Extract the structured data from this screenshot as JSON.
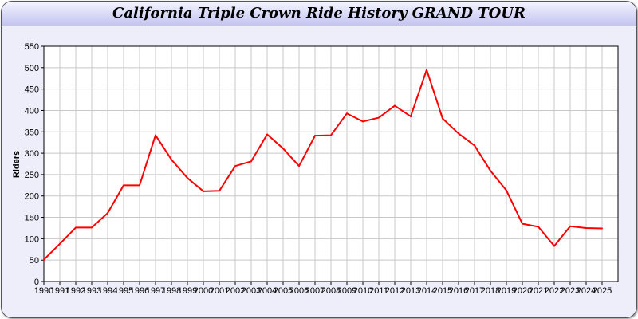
{
  "chart_data": {
    "type": "line",
    "title": "California Triple Crown Ride History GRAND TOUR",
    "xlabel": "",
    "ylabel": "Riders",
    "ylim": [
      0,
      550
    ],
    "yticks": [
      0,
      50,
      100,
      150,
      200,
      250,
      300,
      350,
      400,
      450,
      500,
      550
    ],
    "grid": true,
    "line_color": "#ff0000",
    "x": [
      1990,
      1991,
      1992,
      1993,
      1994,
      1995,
      1996,
      1997,
      1998,
      1999,
      2000,
      2001,
      2002,
      2003,
      2004,
      2005,
      2006,
      2007,
      2008,
      2009,
      2010,
      2011,
      2012,
      2013,
      2014,
      2015,
      2016,
      2017,
      2018,
      2019,
      2020,
      2021,
      2022,
      2023,
      2024,
      2025
    ],
    "series": [
      {
        "values": [
          51,
          88,
          126,
          126,
          160,
          225,
          225,
          342,
          285,
          242,
          211,
          212,
          270,
          281,
          344,
          311,
          270,
          341,
          342,
          393,
          374,
          383,
          411,
          386,
          495,
          381,
          346,
          318,
          259,
          213,
          135,
          128,
          83,
          129,
          125,
          124
        ]
      }
    ]
  }
}
